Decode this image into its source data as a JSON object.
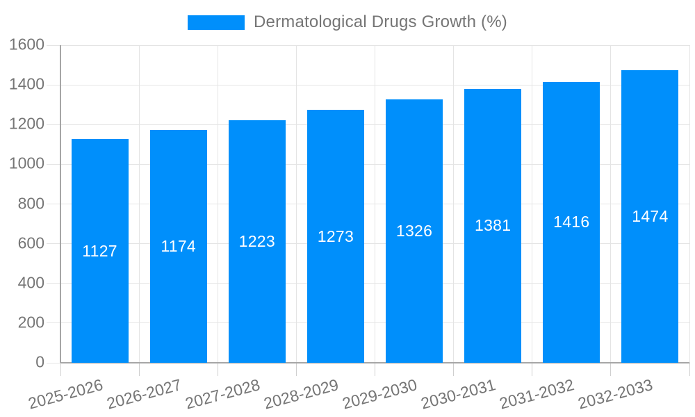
{
  "legend": {
    "label": "Dermatological Drugs Growth (%)"
  },
  "colors": {
    "bar": "#008FFB",
    "grid": "#e4e4e4",
    "tick": "#cfcfcf",
    "axis": "#a6a6a6",
    "text": "#757575",
    "bar_label": "#ffffff",
    "background": "#ffffff"
  },
  "chart_data": {
    "type": "bar",
    "title": "Dermatological Drugs Growth (%)",
    "series": [
      {
        "name": "Dermatological Drugs Growth (%)",
        "values": [
          1127,
          1174,
          1223,
          1273,
          1326,
          1381,
          1416,
          1474
        ]
      }
    ],
    "categories": [
      "2025-2026",
      "2026-2027",
      "2027-2028",
      "2028-2029",
      "2029-2030",
      "2030-2031",
      "2031-2032",
      "2032-2033"
    ],
    "xlabel": "",
    "ylabel": "",
    "ylim": [
      0,
      1600
    ],
    "yticks": [
      0,
      200,
      400,
      600,
      800,
      1000,
      1200,
      1400,
      1600
    ],
    "grid": true,
    "vertical_grid": true,
    "legend_position": "top",
    "bar_value_labels": true,
    "x_label_rotation_deg": -15
  }
}
